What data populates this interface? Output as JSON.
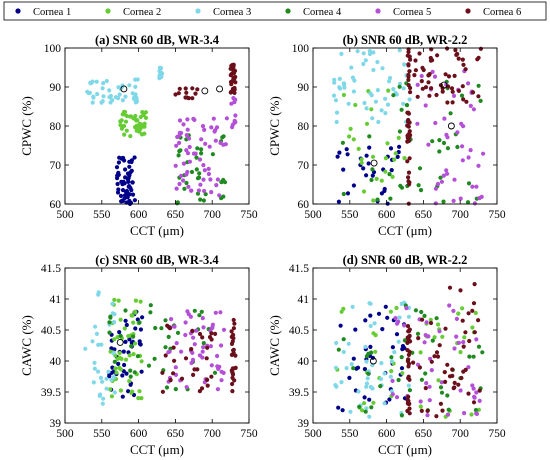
{
  "legend": {
    "items": [
      {
        "label": "Cornea 1",
        "color": "#00008b"
      },
      {
        "label": "Cornea 2",
        "color": "#66cc33"
      },
      {
        "label": "Cornea 3",
        "color": "#7fd8e8"
      },
      {
        "label": "Cornea 4",
        "color": "#1f8a1f"
      },
      {
        "label": "Cornea 5",
        "color": "#b44fd8"
      },
      {
        "label": "Cornea 6",
        "color": "#6b0f1a"
      }
    ],
    "placement": "top"
  },
  "chart_data": [
    {
      "type": "scatter",
      "title": "(a) SNR  60 dB, WR-3.4",
      "xlabel": "CCT (μm)",
      "ylabel": "CPWC (%)",
      "xlim": [
        500,
        750
      ],
      "ylim": [
        60,
        100
      ],
      "xticks": [
        "500",
        "550",
        "600",
        "650",
        "700",
        "750"
      ],
      "yticks": [
        "60",
        "70",
        "80",
        "90",
        "100"
      ],
      "grid": false,
      "clusters": [
        {
          "series": "Cornea 1",
          "x_range": [
            570,
            595
          ],
          "y_range": [
            60,
            72
          ],
          "n": 60
        },
        {
          "series": "Cornea 2",
          "x_range": [
            575,
            610
          ],
          "y_range": [
            77,
            84
          ],
          "n": 45
        },
        {
          "series": "Cornea 3",
          "x_range": [
            530,
            600
          ],
          "y_range": [
            86,
            92
          ],
          "n": 45
        },
        {
          "series": "Cornea 3",
          "x_range": [
            628,
            632
          ],
          "y_range": [
            91,
            95
          ],
          "n": 12
        },
        {
          "series": "Cornea 4",
          "x_range": [
            650,
            720
          ],
          "y_range": [
            60,
            78
          ],
          "n": 35
        },
        {
          "series": "Cornea 5",
          "x_range": [
            650,
            720
          ],
          "y_range": [
            60,
            82
          ],
          "n": 60
        },
        {
          "series": "Cornea 5",
          "x_range": [
            725,
            732
          ],
          "y_range": [
            78,
            88
          ],
          "n": 10
        },
        {
          "series": "Cornea 6",
          "x_range": [
            650,
            680
          ],
          "y_range": [
            87,
            90
          ],
          "n": 12
        },
        {
          "series": "Cornea 6",
          "x_range": [
            725,
            732
          ],
          "y_range": [
            88,
            96
          ],
          "n": 25
        }
      ],
      "markers": [
        {
          "x": 580,
          "y": 89.5
        },
        {
          "x": 690,
          "y": 89
        },
        {
          "x": 710,
          "y": 89.5
        }
      ]
    },
    {
      "type": "scatter",
      "title": "(b) SNR  60 dB, WR-2.2",
      "xlabel": "CCT (μm)",
      "ylabel": "CPWC (%)",
      "xlim": [
        500,
        750
      ],
      "ylim": [
        60,
        100
      ],
      "xticks": [
        "500",
        "550",
        "600",
        "650",
        "700",
        "750"
      ],
      "yticks": [
        "60",
        "70",
        "80",
        "90",
        "100"
      ],
      "grid": false,
      "clusters": [
        {
          "series": "Cornea 1",
          "x_range": [
            530,
            625
          ],
          "y_range": [
            60,
            75
          ],
          "n": 30
        },
        {
          "series": "Cornea 2",
          "x_range": [
            530,
            630
          ],
          "y_range": [
            60,
            90
          ],
          "n": 25
        },
        {
          "series": "Cornea 3",
          "x_range": [
            525,
            632
          ],
          "y_range": [
            80,
            100
          ],
          "n": 55
        },
        {
          "series": "Cornea 4",
          "x_range": [
            530,
            730
          ],
          "y_range": [
            60,
            92
          ],
          "n": 40
        },
        {
          "series": "Cornea 5",
          "x_range": [
            640,
            732
          ],
          "y_range": [
            60,
            95
          ],
          "n": 45
        },
        {
          "series": "Cornea 6",
          "x_range": [
            628,
            632
          ],
          "y_range": [
            60,
            100
          ],
          "n": 40
        },
        {
          "series": "Cornea 6",
          "x_range": [
            635,
            730
          ],
          "y_range": [
            86,
            100
          ],
          "n": 50
        }
      ],
      "markers": [
        {
          "x": 583,
          "y": 70.5
        },
        {
          "x": 678,
          "y": 90.5
        },
        {
          "x": 688,
          "y": 80
        }
      ]
    },
    {
      "type": "scatter",
      "title": "(c) SNR  60 dB, WR-3.4",
      "xlabel": "CCT (μm)",
      "ylabel": "CAWC (%)",
      "xlim": [
        500,
        750
      ],
      "ylim": [
        39,
        41.5
      ],
      "xticks": [
        "500",
        "550",
        "600",
        "650",
        "700",
        "750"
      ],
      "yticks": [
        "39",
        "39.5",
        "40",
        "40.5",
        "41",
        "41.5"
      ],
      "grid": false,
      "clusters": [
        {
          "series": "Cornea 1",
          "x_range": [
            560,
            605
          ],
          "y_range": [
            39.4,
            40.8
          ],
          "n": 45
        },
        {
          "series": "Cornea 2",
          "x_range": [
            560,
            605
          ],
          "y_range": [
            39.4,
            41
          ],
          "n": 50
        },
        {
          "series": "Cornea 3",
          "x_range": [
            525,
            570
          ],
          "y_range": [
            39.3,
            41.2
          ],
          "n": 30
        },
        {
          "series": "Cornea 4",
          "x_range": [
            560,
            720
          ],
          "y_range": [
            39.5,
            40.9
          ],
          "n": 40
        },
        {
          "series": "Cornea 5",
          "x_range": [
            640,
            720
          ],
          "y_range": [
            39.5,
            40.8
          ],
          "n": 55
        },
        {
          "series": "Cornea 6",
          "x_range": [
            630,
            705
          ],
          "y_range": [
            39.5,
            40.6
          ],
          "n": 30
        },
        {
          "series": "Cornea 6",
          "x_range": [
            726,
            732
          ],
          "y_range": [
            39.5,
            40.7
          ],
          "n": 25
        }
      ],
      "markers": [
        {
          "x": 575,
          "y": 40.3
        }
      ]
    },
    {
      "type": "scatter",
      "title": "(d) SNR  60 dB, WR-2.2",
      "xlabel": "CCT (μm)",
      "ylabel": "CAWC (%)",
      "xlim": [
        500,
        750
      ],
      "ylim": [
        39,
        41.5
      ],
      "xticks": [
        "500",
        "550",
        "600",
        "650",
        "700",
        "750"
      ],
      "yticks": [
        "39",
        "39.5",
        "40",
        "40.5",
        "41",
        "41.5"
      ],
      "grid": false,
      "clusters": [
        {
          "series": "Cornea 1",
          "x_range": [
            530,
            625
          ],
          "y_range": [
            39.2,
            40.9
          ],
          "n": 40
        },
        {
          "series": "Cornea 2",
          "x_range": [
            530,
            730
          ],
          "y_range": [
            39.1,
            40.9
          ],
          "n": 40
        },
        {
          "series": "Cornea 3",
          "x_range": [
            525,
            632
          ],
          "y_range": [
            39.1,
            41
          ],
          "n": 45
        },
        {
          "series": "Cornea 4",
          "x_range": [
            530,
            730
          ],
          "y_range": [
            39.1,
            40.9
          ],
          "n": 40
        },
        {
          "series": "Cornea 5",
          "x_range": [
            600,
            730
          ],
          "y_range": [
            39.1,
            40.9
          ],
          "n": 45
        },
        {
          "series": "Cornea 6",
          "x_range": [
            628,
            632
          ],
          "y_range": [
            39.1,
            40.6
          ],
          "n": 30
        },
        {
          "series": "Cornea 6",
          "x_range": [
            635,
            730
          ],
          "y_range": [
            39.1,
            41.3
          ],
          "n": 45
        }
      ],
      "markers": [
        {
          "x": 582,
          "y": 40
        }
      ]
    }
  ]
}
